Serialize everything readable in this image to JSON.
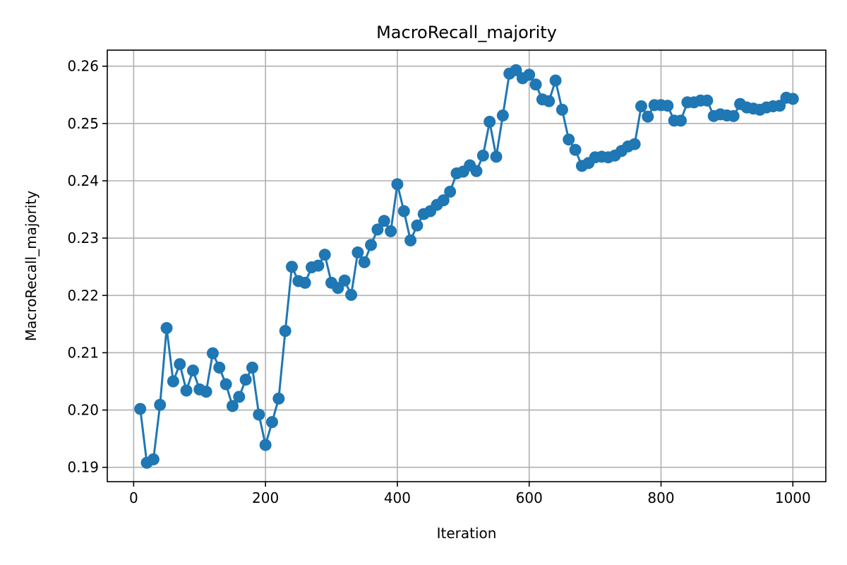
{
  "chart_data": {
    "type": "line",
    "title": "MacroRecall_majority",
    "xlabel": "Iteration",
    "ylabel": "MacroRecall_majority",
    "xlim": [
      -40,
      1050
    ],
    "ylim": [
      0.1875,
      0.2628
    ],
    "xticks": [
      0,
      200,
      400,
      600,
      800,
      1000
    ],
    "xtick_labels": [
      "0",
      "200",
      "400",
      "600",
      "800",
      "1000"
    ],
    "yticks": [
      0.19,
      0.2,
      0.21,
      0.22,
      0.23,
      0.24,
      0.25,
      0.26
    ],
    "ytick_labels": [
      "0.19",
      "0.20",
      "0.21",
      "0.22",
      "0.23",
      "0.24",
      "0.25",
      "0.26"
    ],
    "grid": true,
    "line_color": "#1f77b4",
    "markers": true,
    "series": [
      {
        "x": [
          10,
          20,
          30,
          40,
          50,
          60,
          70,
          80,
          90,
          100,
          110,
          120,
          130,
          140,
          150,
          160,
          170,
          180,
          190,
          200,
          210,
          220,
          230,
          240,
          250,
          260,
          270,
          280,
          290,
          300,
          310,
          320,
          330,
          340,
          350,
          360,
          370,
          380,
          390,
          400,
          410,
          420,
          430,
          440,
          450,
          460,
          470,
          480,
          490,
          500,
          510,
          520,
          530,
          540,
          550,
          560,
          570,
          580,
          590,
          600,
          610,
          620,
          630,
          640,
          650,
          660,
          670,
          680,
          690,
          700,
          710,
          720,
          730,
          740,
          750,
          760,
          770,
          780,
          790,
          800,
          810,
          820,
          830,
          840,
          850,
          860,
          870,
          880,
          890,
          900,
          910,
          920,
          930,
          940,
          950,
          960,
          970,
          980,
          990,
          1000
        ],
        "y": [
          0.2002,
          0.1908,
          0.1914,
          0.2009,
          0.2143,
          0.205,
          0.208,
          0.2034,
          0.2069,
          0.2036,
          0.2032,
          0.2099,
          0.2074,
          0.2045,
          0.2007,
          0.2023,
          0.2053,
          0.2074,
          0.1992,
          0.1939,
          0.1979,
          0.202,
          0.2138,
          0.225,
          0.2225,
          0.2222,
          0.2249,
          0.2252,
          0.2271,
          0.2222,
          0.2213,
          0.2226,
          0.2201,
          0.2275,
          0.2258,
          0.2288,
          0.2315,
          0.233,
          0.2312,
          0.2394,
          0.2347,
          0.2296,
          0.2322,
          0.2342,
          0.2347,
          0.2358,
          0.2366,
          0.2381,
          0.2413,
          0.2416,
          0.2427,
          0.2417,
          0.2444,
          0.2503,
          0.2442,
          0.2514,
          0.2587,
          0.2593,
          0.2579,
          0.2585,
          0.2568,
          0.2542,
          0.2539,
          0.2575,
          0.2524,
          0.2472,
          0.2454,
          0.2426,
          0.2431,
          0.2441,
          0.2442,
          0.2441,
          0.2444,
          0.2452,
          0.246,
          0.2464,
          0.253,
          0.2512,
          0.2532,
          0.2532,
          0.2531,
          0.2505,
          0.2505,
          0.2537,
          0.2537,
          0.254,
          0.254,
          0.2513,
          0.2516,
          0.2514,
          0.2513,
          0.2534,
          0.2528,
          0.2526,
          0.2524,
          0.2528,
          0.253,
          0.2531,
          0.2545,
          0.2543
        ]
      }
    ]
  }
}
